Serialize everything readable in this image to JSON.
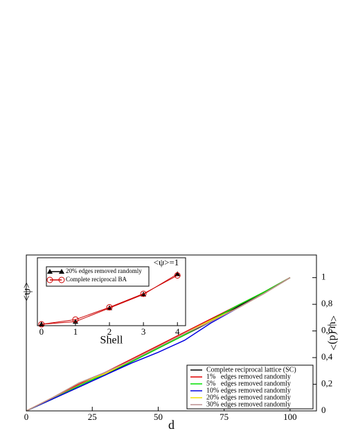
{
  "chart_data": [
    {
      "type": "line",
      "xlabel": "d",
      "ylabel": "<ψ (d)>",
      "y_axis_side": "right",
      "legend": "lower right",
      "x": [
        0,
        10,
        20,
        30,
        40,
        50,
        60,
        70,
        80,
        90,
        100
      ],
      "xlim": [
        0,
        110
      ],
      "xticks": [
        0,
        25,
        50,
        75,
        100
      ],
      "ylim": [
        0,
        1.17
      ],
      "yticks": [
        0,
        {
          "value": 0.2,
          "label": "0,2"
        },
        {
          "value": 0.4,
          "label": "0,4"
        },
        {
          "value": 0.6,
          "label": "0,6"
        },
        {
          "value": 0.8,
          "label": "0,8"
        },
        1
      ],
      "series": [
        {
          "name": "Complete reciprocal lattice (SC)",
          "color": "#000000",
          "values": [
            0,
            0.09,
            0.18,
            0.27,
            0.37,
            0.47,
            0.57,
            0.67,
            0.78,
            0.89,
            1.0
          ]
        },
        {
          "name": "1%   edges removed randomly",
          "color": "#e00000",
          "values": [
            0,
            0.1,
            0.2,
            0.29,
            0.39,
            0.49,
            0.59,
            0.69,
            0.79,
            0.89,
            1.0
          ]
        },
        {
          "name": "5%   edges removed randomly",
          "color": "#00e000",
          "values": [
            0,
            0.09,
            0.19,
            0.28,
            0.37,
            0.47,
            0.57,
            0.68,
            0.79,
            0.89,
            1.0
          ]
        },
        {
          "name": "10% edges removed randomly",
          "color": "#0000e0",
          "values": [
            0,
            0.09,
            0.18,
            0.27,
            0.36,
            0.44,
            0.53,
            0.66,
            0.77,
            0.88,
            1.0
          ]
        },
        {
          "name": "20% edges removed randomly",
          "color": "#f0e000",
          "values": [
            0,
            0.1,
            0.21,
            0.28,
            0.38,
            0.48,
            0.58,
            0.68,
            0.77,
            0.88,
            1.0
          ]
        },
        {
          "name": "30% edges removed randomly",
          "color": "#bc8f8f",
          "values": [
            0,
            0.1,
            0.21,
            0.29,
            0.38,
            0.48,
            0.58,
            0.67,
            0.77,
            0.88,
            1.0
          ]
        }
      ]
    },
    {
      "type": "line",
      "xlabel": "Shell",
      "ylabel": "<ψ>",
      "y_axis_side": "left",
      "legend": "upper left",
      "annotation": "<ψ>=1",
      "x": [
        0,
        1,
        2,
        3,
        4
      ],
      "xlim": [
        -0.12,
        4.24
      ],
      "xticks": [
        0,
        1,
        2,
        3,
        4
      ],
      "ylim": [
        0.63,
        1.13
      ],
      "series": [
        {
          "name": "20% edges removed randomly",
          "color": "#000000",
          "marker": "triangle",
          "values": [
            0.64,
            0.66,
            0.76,
            0.86,
            1.01
          ]
        },
        {
          "name": "Complete reciprocal BA",
          "color": "#cc0000",
          "marker": "circle",
          "values": [
            0.64,
            0.675,
            0.765,
            0.865,
            1.0
          ]
        }
      ]
    }
  ]
}
